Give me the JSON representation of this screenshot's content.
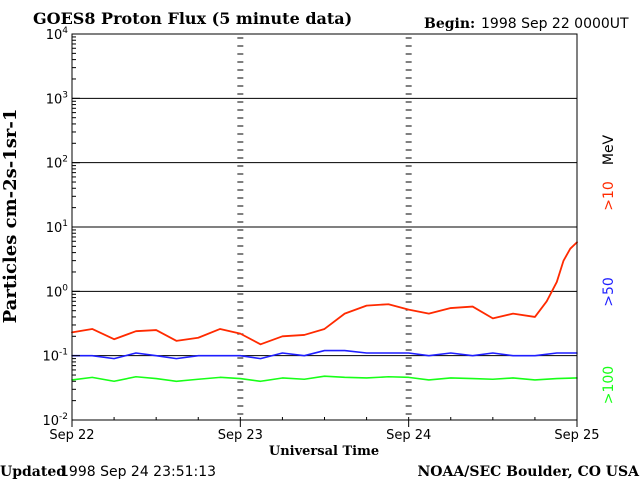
{
  "colors": {
    "gt10": "#ff2a00",
    "gt50": "#1f1fff",
    "gt100": "#18ff18",
    "axis": "#000000",
    "background": "#ffffff"
  },
  "chart_data": {
    "type": "line",
    "title": "GOES8 Proton Flux (5 minute data)",
    "begin_label": "Begin:",
    "begin_value": "1998 Sep 22 0000UT",
    "xlabel": "Universal Time",
    "ylabel": "Particles cm-2s-1sr-1",
    "y_scale": "log",
    "ylim": [
      0.01,
      10000
    ],
    "grid": true,
    "x": [
      "Sep 22",
      "Sep 23",
      "Sep 24",
      "Sep 25"
    ],
    "y_ticks": [
      {
        "value": 0.01,
        "base": "10",
        "exp": "-2"
      },
      {
        "value": 0.1,
        "base": "10",
        "exp": "-1"
      },
      {
        "value": 1,
        "base": "10",
        "exp": "0"
      },
      {
        "value": 10,
        "base": "10",
        "exp": "1"
      },
      {
        "value": 100,
        "base": "10",
        "exp": "2"
      },
      {
        "value": 1000,
        "base": "10",
        "exp": "3"
      },
      {
        "value": 10000,
        "base": "10",
        "exp": "4"
      }
    ],
    "legend_unit": "MeV",
    "series": [
      {
        "name": ">10",
        "color": "#ff2a00",
        "points": [
          [
            0.0,
            0.23
          ],
          [
            0.12,
            0.26
          ],
          [
            0.25,
            0.18
          ],
          [
            0.38,
            0.24
          ],
          [
            0.5,
            0.25
          ],
          [
            0.62,
            0.17
          ],
          [
            0.75,
            0.19
          ],
          [
            0.88,
            0.26
          ],
          [
            1.0,
            0.22
          ],
          [
            1.12,
            0.15
          ],
          [
            1.25,
            0.2
          ],
          [
            1.38,
            0.21
          ],
          [
            1.5,
            0.26
          ],
          [
            1.62,
            0.45
          ],
          [
            1.75,
            0.6
          ],
          [
            1.88,
            0.63
          ],
          [
            2.0,
            0.52
          ],
          [
            2.12,
            0.45
          ],
          [
            2.25,
            0.55
          ],
          [
            2.38,
            0.58
          ],
          [
            2.5,
            0.38
          ],
          [
            2.62,
            0.45
          ],
          [
            2.75,
            0.4
          ],
          [
            2.82,
            0.7
          ],
          [
            2.88,
            1.4
          ],
          [
            2.92,
            3.0
          ],
          [
            2.96,
            4.6
          ],
          [
            3.0,
            5.8
          ]
        ]
      },
      {
        "name": ">50",
        "color": "#1f1fff",
        "points": [
          [
            0.0,
            0.1
          ],
          [
            0.12,
            0.1
          ],
          [
            0.25,
            0.09
          ],
          [
            0.38,
            0.11
          ],
          [
            0.5,
            0.1
          ],
          [
            0.62,
            0.09
          ],
          [
            0.75,
            0.1
          ],
          [
            0.88,
            0.1
          ],
          [
            1.0,
            0.1
          ],
          [
            1.12,
            0.09
          ],
          [
            1.25,
            0.11
          ],
          [
            1.38,
            0.1
          ],
          [
            1.5,
            0.12
          ],
          [
            1.62,
            0.12
          ],
          [
            1.75,
            0.11
          ],
          [
            1.88,
            0.11
          ],
          [
            2.0,
            0.11
          ],
          [
            2.12,
            0.1
          ],
          [
            2.25,
            0.11
          ],
          [
            2.38,
            0.1
          ],
          [
            2.5,
            0.11
          ],
          [
            2.62,
            0.1
          ],
          [
            2.75,
            0.1
          ],
          [
            2.88,
            0.11
          ],
          [
            3.0,
            0.11
          ]
        ]
      },
      {
        "name": ">100",
        "color": "#18ff18",
        "points": [
          [
            0.0,
            0.042
          ],
          [
            0.12,
            0.046
          ],
          [
            0.25,
            0.04
          ],
          [
            0.38,
            0.047
          ],
          [
            0.5,
            0.044
          ],
          [
            0.62,
            0.04
          ],
          [
            0.75,
            0.043
          ],
          [
            0.88,
            0.046
          ],
          [
            1.0,
            0.044
          ],
          [
            1.12,
            0.04
          ],
          [
            1.25,
            0.045
          ],
          [
            1.38,
            0.043
          ],
          [
            1.5,
            0.048
          ],
          [
            1.62,
            0.046
          ],
          [
            1.75,
            0.045
          ],
          [
            1.88,
            0.047
          ],
          [
            2.0,
            0.046
          ],
          [
            2.12,
            0.042
          ],
          [
            2.25,
            0.045
          ],
          [
            2.38,
            0.044
          ],
          [
            2.5,
            0.043
          ],
          [
            2.62,
            0.045
          ],
          [
            2.75,
            0.042
          ],
          [
            2.88,
            0.044
          ],
          [
            3.0,
            0.045
          ]
        ]
      }
    ]
  },
  "footer": {
    "updated_label": "Updated",
    "updated_value": "1998 Sep 24 23:51:13",
    "credit": "NOAA/SEC Boulder, CO USA"
  }
}
